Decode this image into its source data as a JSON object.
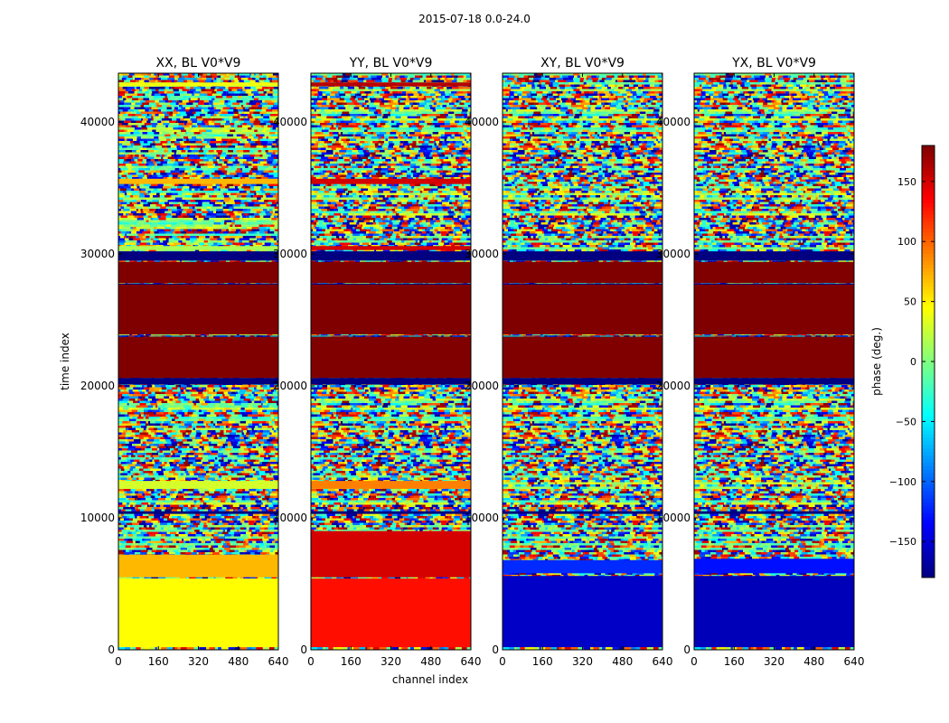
{
  "figure": {
    "suptitle": "2015-07-18 0.0-24.0",
    "xlabel": "channel index",
    "ylabel": "time index"
  },
  "chart_data": {
    "type": "heatmap",
    "x": {
      "label": "channel index",
      "range": [
        0,
        640
      ],
      "ticks": [
        0,
        160,
        320,
        480,
        640
      ]
    },
    "y": {
      "label": "time index",
      "range": [
        0,
        43700
      ],
      "ticks": [
        0,
        10000,
        20000,
        30000,
        40000
      ]
    },
    "colormap": "jet",
    "colorbar": {
      "label": "phase (deg.)",
      "range": [
        -180,
        180
      ],
      "ticks": [
        -150,
        -100,
        -50,
        0,
        50,
        100,
        150
      ]
    },
    "panels": [
      {
        "title": "XX, BL V0*V9",
        "bands": [
          {
            "y": [
              27800,
              29400
            ],
            "phase": 180
          },
          {
            "y": [
              20600,
              23700
            ],
            "phase": 180
          },
          {
            "y": [
              23900,
              27700
            ],
            "phase": 180
          },
          {
            "y": [
              29500,
              30200
            ],
            "phase": -180
          },
          {
            "y": [
              20100,
              20600
            ],
            "phase": -180
          },
          {
            "y": [
              42700,
              43000
            ],
            "phase": 40
          },
          {
            "y": [
              35300,
              35700
            ],
            "phase": 70
          },
          {
            "y": [
              30300,
              30600
            ],
            "phase": 15
          },
          {
            "y": [
              12200,
              12800
            ],
            "phase": 30
          },
          {
            "y": [
              10300,
              10500
            ],
            "phase": -180
          },
          {
            "y": [
              5500,
              7200
            ],
            "phase": 70
          },
          {
            "y": [
              200,
              5400
            ],
            "phase": 45
          }
        ]
      },
      {
        "title": "YY, BL V0*V9",
        "bands": [
          {
            "y": [
              27800,
              29400
            ],
            "phase": 180
          },
          {
            "y": [
              20600,
              23700
            ],
            "phase": 180
          },
          {
            "y": [
              23900,
              27700
            ],
            "phase": 180
          },
          {
            "y": [
              29500,
              30200
            ],
            "phase": -180
          },
          {
            "y": [
              20100,
              20600
            ],
            "phase": -180
          },
          {
            "y": [
              42700,
              43000
            ],
            "phase": 160
          },
          {
            "y": [
              35300,
              35700
            ],
            "phase": 150
          },
          {
            "y": [
              30300,
              30600
            ],
            "phase": 150
          },
          {
            "y": [
              12200,
              12800
            ],
            "phase": 90
          },
          {
            "y": [
              10300,
              10500
            ],
            "phase": -180
          },
          {
            "y": [
              5500,
              9000
            ],
            "phase": 150
          },
          {
            "y": [
              200,
              5400
            ],
            "phase": 130
          }
        ]
      },
      {
        "title": "XY, BL V0*V9",
        "bands": [
          {
            "y": [
              27800,
              29400
            ],
            "phase": 180
          },
          {
            "y": [
              20600,
              23700
            ],
            "phase": 180
          },
          {
            "y": [
              23900,
              27700
            ],
            "phase": 180
          },
          {
            "y": [
              29500,
              30200
            ],
            "phase": -180
          },
          {
            "y": [
              20100,
              20600
            ],
            "phase": -180
          },
          {
            "y": [
              10300,
              10500
            ],
            "phase": -180
          },
          {
            "y": [
              5800,
              6800
            ],
            "phase": -120
          },
          {
            "y": [
              200,
              5600
            ],
            "phase": -155
          }
        ]
      },
      {
        "title": "YX, BL V0*V9",
        "bands": [
          {
            "y": [
              27800,
              29400
            ],
            "phase": 180
          },
          {
            "y": [
              20600,
              23700
            ],
            "phase": 180
          },
          {
            "y": [
              23900,
              27700
            ],
            "phase": 180
          },
          {
            "y": [
              29500,
              30200
            ],
            "phase": -180
          },
          {
            "y": [
              20100,
              20600
            ],
            "phase": -180
          },
          {
            "y": [
              10300,
              10500
            ],
            "phase": -180
          },
          {
            "y": [
              5800,
              6900
            ],
            "phase": -130
          },
          {
            "y": [
              200,
              5600
            ],
            "phase": -160
          }
        ]
      }
    ]
  }
}
